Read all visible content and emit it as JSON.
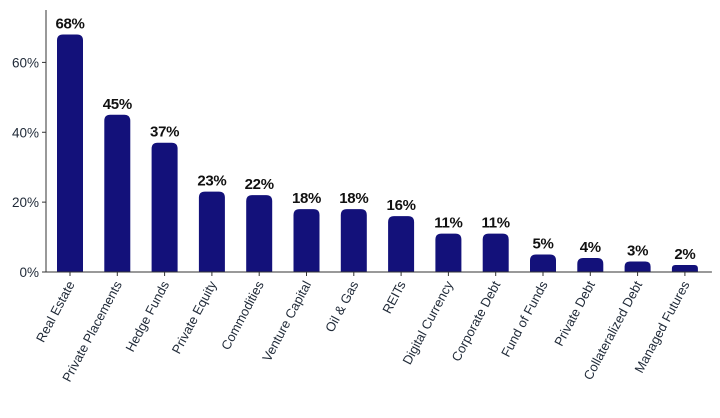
{
  "chart_data": {
    "type": "bar",
    "title": "",
    "xlabel": "",
    "ylabel": "",
    "categories": [
      "Real Estate",
      "Private Placements",
      "Hedge Funds",
      "Private Equity",
      "Commodities",
      "Venture Capital",
      "Oil & Gas",
      "REITs",
      "Digital Currency",
      "Corporate Debt",
      "Fund of Funds",
      "Private Debt",
      "Collateralized Debt",
      "Managed Futures"
    ],
    "values": [
      68,
      45,
      37,
      23,
      22,
      18,
      18,
      16,
      11,
      11,
      5,
      4,
      3,
      2
    ],
    "data_labels": [
      "68%",
      "45%",
      "37%",
      "23%",
      "22%",
      "18%",
      "18%",
      "16%",
      "11%",
      "11%",
      "5%",
      "4%",
      "3%",
      "2%"
    ],
    "ylim": [
      0,
      75
    ],
    "y_ticks": [
      0,
      20,
      40,
      60
    ],
    "y_tick_labels": [
      "0%",
      "20%",
      "40%",
      "60%"
    ],
    "grid": false,
    "legend": "none",
    "bar_color": "#13117a",
    "x_label_rotation": "-60deg"
  }
}
